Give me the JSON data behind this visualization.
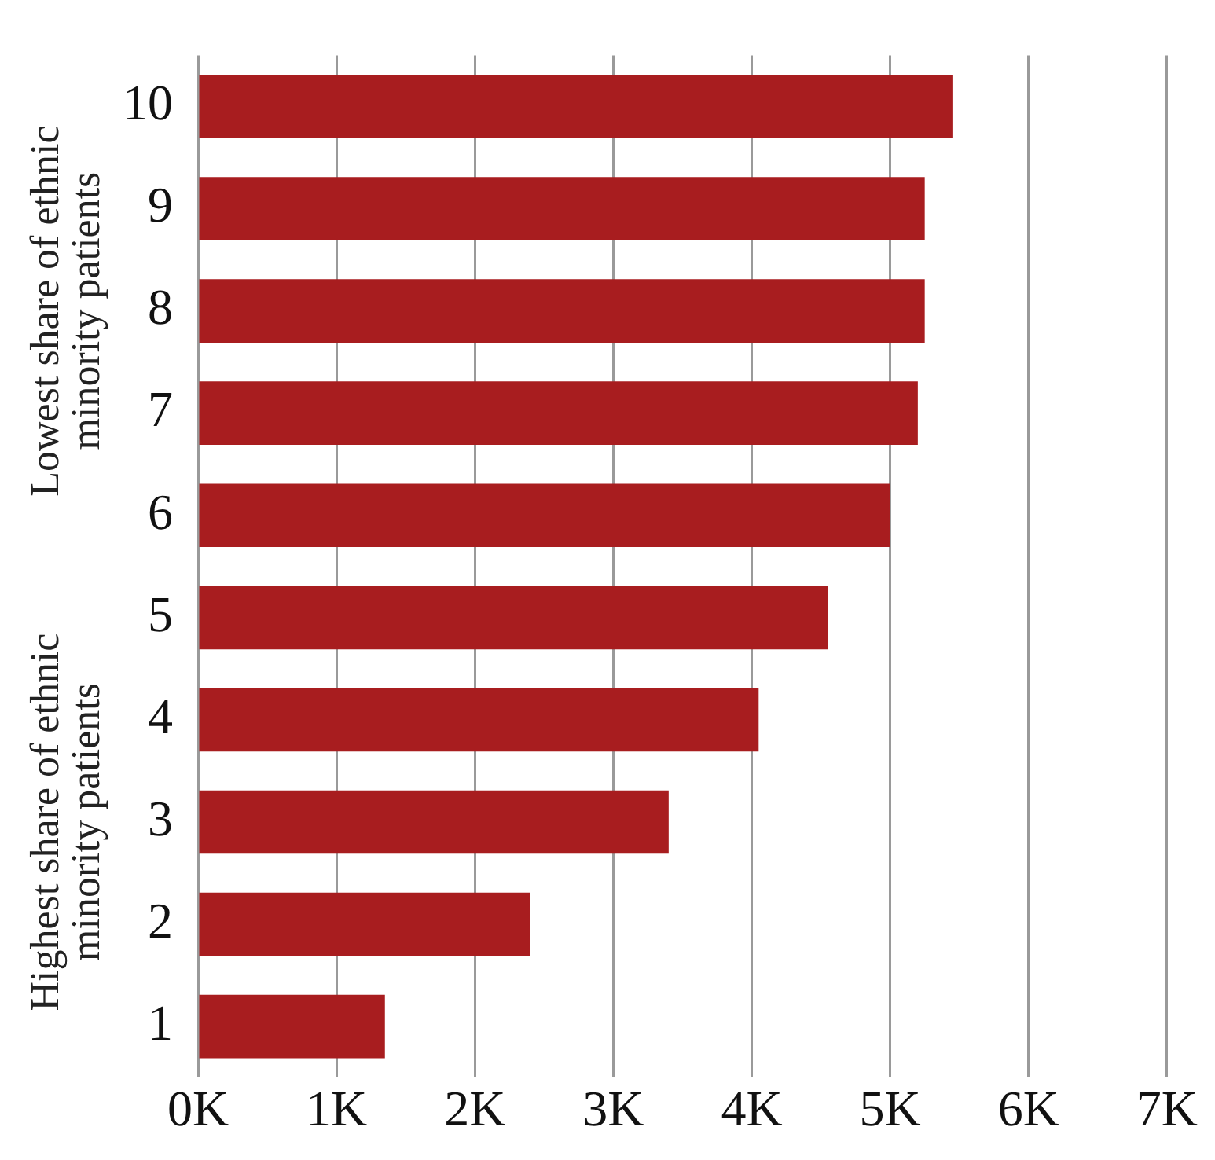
{
  "chart_data": {
    "type": "bar",
    "orientation": "horizontal",
    "categories": [
      "10",
      "9",
      "8",
      "7",
      "6",
      "5",
      "4",
      "3",
      "2",
      "1"
    ],
    "values": [
      5450,
      5250,
      5250,
      5200,
      5000,
      4550,
      4050,
      3400,
      2400,
      1350
    ],
    "color": "#a81d1f",
    "xlim": [
      0,
      7000
    ],
    "xticks": [
      {
        "value": 0,
        "label": "0K"
      },
      {
        "value": 1000,
        "label": "1K"
      },
      {
        "value": 2000,
        "label": "2K"
      },
      {
        "value": 3000,
        "label": "3K"
      },
      {
        "value": 4000,
        "label": "4K"
      },
      {
        "value": 5000,
        "label": "5K"
      },
      {
        "value": 6000,
        "label": "6K"
      },
      {
        "value": 7000,
        "label": "7K"
      }
    ],
    "grid": "x",
    "annotations": [
      "Lowest share of ethnic minority patients",
      "Highest share of ethnic minority patients"
    ]
  }
}
